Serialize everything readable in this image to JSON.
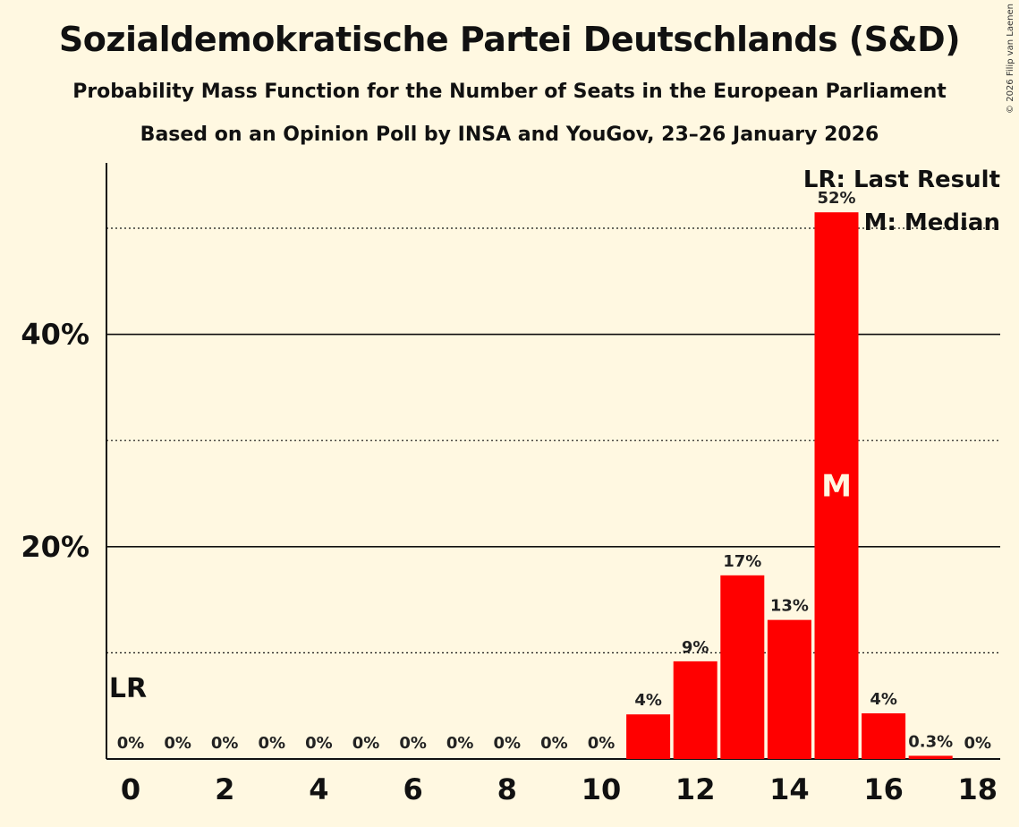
{
  "header": {
    "title": "Sozialdemokratische Partei Deutschlands (S&D)",
    "subtitle1": "Probability Mass Function for the Number of Seats in the European Parliament",
    "subtitle2": "Based on an Opinion Poll by INSA and YouGov, 23–26 January 2026",
    "copyright": "© 2026 Filip van Laenen"
  },
  "colors": {
    "bar": "#ff0000",
    "background": "#fff8e1"
  },
  "chart_data": {
    "type": "bar",
    "title": "Sozialdemokratische Partei Deutschlands (S&D)",
    "xlabel": "",
    "ylabel": "",
    "categories": [
      0,
      1,
      2,
      3,
      4,
      5,
      6,
      7,
      8,
      9,
      10,
      11,
      12,
      13,
      14,
      15,
      16,
      17,
      18
    ],
    "values": [
      0,
      0,
      0,
      0,
      0,
      0,
      0,
      0,
      0,
      0,
      0,
      4.2,
      9.2,
      17.3,
      13.1,
      51.5,
      4.3,
      0.3,
      0
    ],
    "data_labels": [
      "0%",
      "0%",
      "0%",
      "0%",
      "0%",
      "0%",
      "0%",
      "0%",
      "0%",
      "0%",
      "0%",
      "4%",
      "9%",
      "17%",
      "13%",
      "52%",
      "4%",
      "0.3%",
      "0%"
    ],
    "x_ticks": [
      0,
      2,
      4,
      6,
      8,
      10,
      12,
      14,
      16,
      18
    ],
    "y_ticks": [
      {
        "value": 10,
        "label": "",
        "style": "dotted"
      },
      {
        "value": 20,
        "label": "20%",
        "style": "solid"
      },
      {
        "value": 30,
        "label": "",
        "style": "dotted"
      },
      {
        "value": 40,
        "label": "40%",
        "style": "solid"
      },
      {
        "value": 50,
        "label": "",
        "style": "dotted"
      }
    ],
    "ylim": [
      0,
      56
    ],
    "median": 15,
    "median_label": "M",
    "last_result": 0,
    "last_result_label": "LR",
    "legend": [
      "LR: Last Result",
      "M: Median"
    ]
  }
}
